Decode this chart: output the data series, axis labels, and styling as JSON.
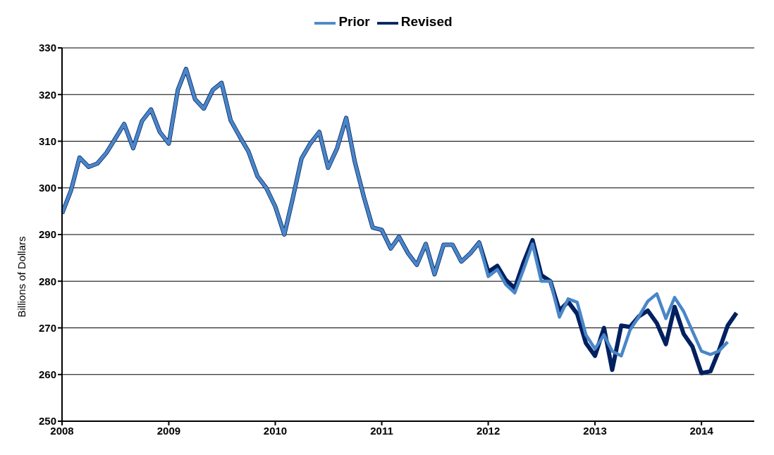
{
  "chart_data": {
    "type": "line",
    "ylabel": "Billions  of Dollars",
    "x": [
      "2008-01",
      "2008-02",
      "2008-03",
      "2008-04",
      "2008-05",
      "2008-06",
      "2008-07",
      "2008-08",
      "2008-09",
      "2008-10",
      "2008-11",
      "2008-12",
      "2009-01",
      "2009-02",
      "2009-03",
      "2009-04",
      "2009-05",
      "2009-06",
      "2009-07",
      "2009-08",
      "2009-09",
      "2009-10",
      "2009-11",
      "2009-12",
      "2010-01",
      "2010-02",
      "2010-03",
      "2010-04",
      "2010-05",
      "2010-06",
      "2010-07",
      "2010-08",
      "2010-09",
      "2010-10",
      "2010-11",
      "2010-12",
      "2011-01",
      "2011-02",
      "2011-03",
      "2011-04",
      "2011-05",
      "2011-06",
      "2011-07",
      "2011-08",
      "2011-09",
      "2011-10",
      "2011-11",
      "2011-12",
      "2012-01",
      "2012-02",
      "2012-03",
      "2012-04",
      "2012-05",
      "2012-06",
      "2012-07",
      "2012-08",
      "2012-09",
      "2012-10",
      "2012-11",
      "2012-12",
      "2013-01",
      "2013-02",
      "2013-03",
      "2013-04",
      "2013-05",
      "2013-06",
      "2013-07",
      "2013-08",
      "2013-09",
      "2013-10",
      "2013-11",
      "2013-12",
      "2014-01",
      "2014-02",
      "2014-03",
      "2014-04",
      "2014-05"
    ],
    "series": [
      {
        "name": "Revised",
        "color": "#002060",
        "values": [
          294.5,
          299.5,
          306.5,
          304.5,
          305.2,
          307.5,
          310.5,
          313.7,
          308.5,
          314.3,
          316.8,
          312,
          309.5,
          321,
          325.5,
          319,
          317,
          321,
          322.5,
          314.5,
          311,
          307.8,
          302.5,
          300,
          296,
          290,
          297.5,
          306.3,
          309.5,
          312,
          304.3,
          308.5,
          315,
          305.5,
          298,
          291.5,
          291,
          287,
          289.5,
          286,
          283.5,
          288,
          281.5,
          287.8,
          287.8,
          284.2,
          286,
          288.3,
          282,
          283.3,
          280.3,
          278.5,
          284,
          288.8,
          281.3,
          280,
          273.7,
          275.6,
          273,
          266.7,
          264,
          270,
          261,
          270.5,
          270.2,
          272.5,
          273.7,
          271,
          266.5,
          274.5,
          268.7,
          266,
          260.3,
          260.7,
          265,
          270.5,
          273.2
        ]
      },
      {
        "name": "Prior",
        "color": "#4a86c8",
        "values": [
          294.5,
          299.5,
          306.5,
          304.5,
          305.2,
          307.5,
          310.5,
          313.7,
          308.5,
          314.3,
          316.8,
          312,
          309.5,
          321,
          325.5,
          319,
          317,
          321,
          322.5,
          314.5,
          311,
          307.8,
          302.5,
          300,
          296,
          290,
          297.5,
          306.3,
          309.5,
          312,
          304.3,
          308.5,
          315,
          305.5,
          298,
          291.5,
          291,
          287,
          289.5,
          286,
          283.5,
          288,
          281.5,
          287.8,
          287.8,
          284.2,
          286,
          288.3,
          281,
          282.5,
          279.3,
          277.5,
          282.5,
          288,
          280,
          280,
          272.3,
          276.2,
          275.5,
          268.5,
          265.5,
          268.5,
          265,
          264,
          269.5,
          272.5,
          275.7,
          277.3,
          272,
          276.5,
          273.5,
          269.3,
          265,
          264.3,
          265,
          267,
          null
        ]
      }
    ],
    "xlim": [
      "2008",
      "2014-07"
    ],
    "xticks": [
      "2008",
      "2009",
      "2010",
      "2011",
      "2012",
      "2013",
      "2014"
    ],
    "ylim": [
      250,
      330
    ],
    "yticks": [
      250,
      260,
      270,
      280,
      290,
      300,
      310,
      320,
      330
    ],
    "grid": "y",
    "legend": "top",
    "marker": "none",
    "line_style": "solid"
  }
}
